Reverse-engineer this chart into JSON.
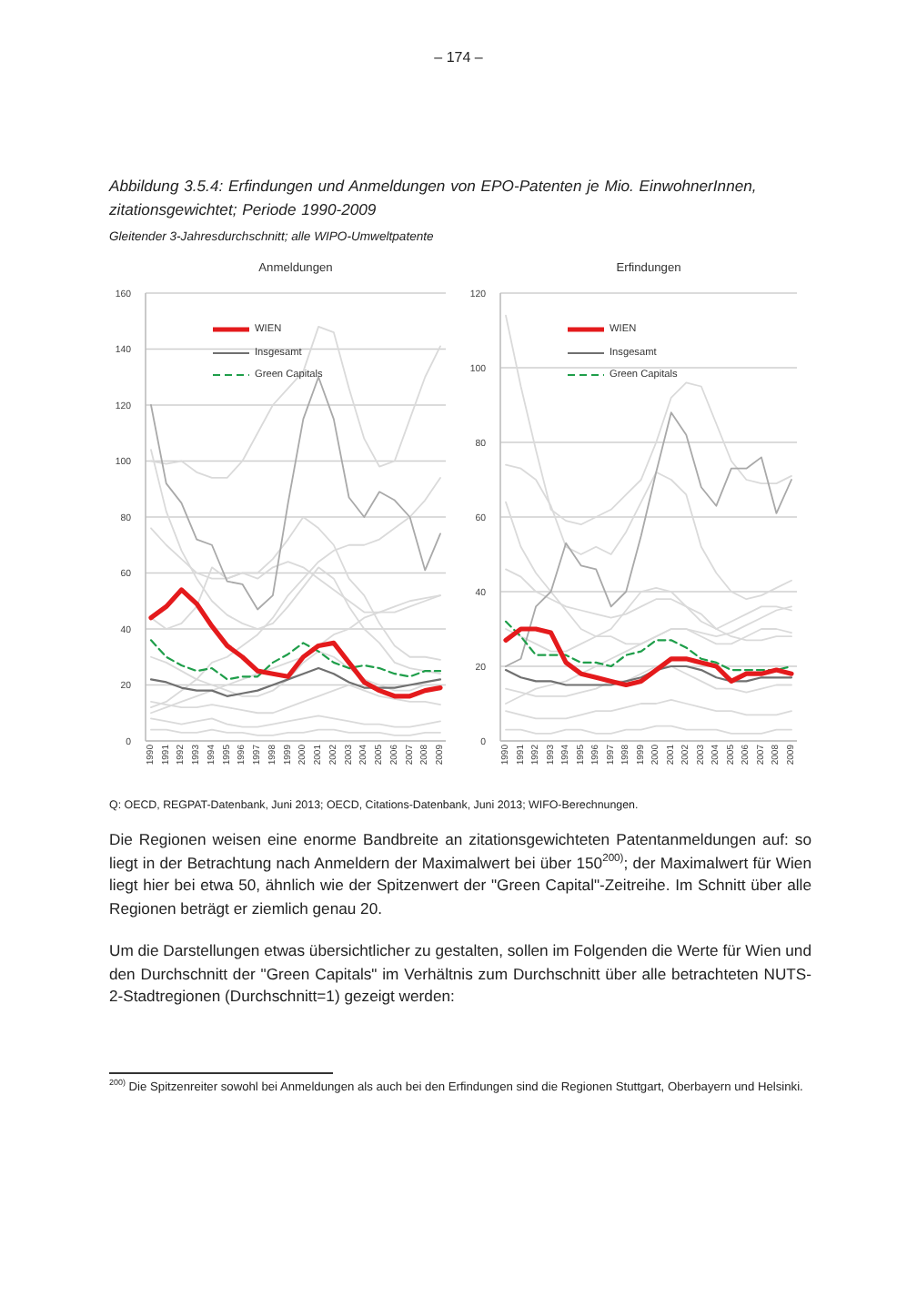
{
  "chart_data": [
    {
      "type": "other",
      "annotations": [
        "– 174 –"
      ],
      "title": "Abbildung 3.5.4: Erfindungen und Anmeldungen von EPO-Patenten je Mio. EinwohnerInnen, zitationsgewichtet; Periode 1990-2009",
      "subtitle": "Gleitender 3-Jahresdurchschnitt; alle WIPO-Umweltpatente"
    },
    {
      "type": "line",
      "title": "Anmeldungen",
      "categories": [
        "1990",
        "1991",
        "1992",
        "1993",
        "1994",
        "1995",
        "1996",
        "1997",
        "1998",
        "1999",
        "2000",
        "2001",
        "2002",
        "2003",
        "2004",
        "2005",
        "2006",
        "2007",
        "2008",
        "2009"
      ],
      "ylim": [
        0,
        160
      ],
      "yticks": [
        0,
        20,
        40,
        60,
        80,
        100,
        120,
        140,
        160
      ],
      "grid": "y",
      "legend": "top left",
      "series": [
        {
          "color": "#dadada",
          "values": [
            100,
            99,
            100,
            96,
            94,
            94,
            100,
            110,
            120,
            126,
            132,
            148,
            146,
            126,
            108,
            98,
            100,
            115,
            130,
            141
          ]
        },
        {
          "color": "#dadada",
          "values": [
            44,
            40,
            42,
            48,
            62,
            58,
            60,
            58,
            62,
            64,
            62,
            58,
            54,
            50,
            46,
            46,
            46,
            48,
            50,
            52
          ]
        },
        {
          "color": "#dadada",
          "values": [
            76,
            70,
            65,
            60,
            58,
            58,
            60,
            60,
            65,
            72,
            80,
            76,
            70,
            58,
            52,
            42,
            34,
            30,
            30,
            29
          ]
        },
        {
          "color": "#dadada",
          "values": [
            104,
            82,
            68,
            58,
            50,
            45,
            42,
            40,
            42,
            48,
            55,
            62,
            58,
            48,
            40,
            35,
            28,
            26,
            25,
            24
          ]
        },
        {
          "color": "#dadada",
          "values": [
            12,
            14,
            18,
            22,
            28,
            30,
            34,
            38,
            44,
            52,
            58,
            64,
            68,
            70,
            70,
            72,
            76,
            80,
            86,
            94
          ]
        },
        {
          "color": "#dadada",
          "values": [
            10,
            12,
            14,
            16,
            18,
            20,
            22,
            24,
            26,
            28,
            30,
            34,
            38,
            40,
            44,
            46,
            48,
            50,
            51,
            52
          ]
        },
        {
          "color": "#dadada",
          "values": [
            30,
            28,
            25,
            22,
            20,
            18,
            16,
            16,
            18,
            22,
            28,
            32,
            30,
            26,
            22,
            20,
            18,
            18,
            20,
            20
          ]
        },
        {
          "color": "#dadada",
          "values": [
            14,
            13,
            12,
            12,
            13,
            12,
            11,
            10,
            10,
            12,
            14,
            16,
            18,
            20,
            18,
            16,
            15,
            14,
            14,
            13
          ]
        },
        {
          "color": "#dadada",
          "values": [
            8,
            7,
            6,
            7,
            8,
            6,
            5,
            5,
            6,
            7,
            8,
            9,
            8,
            7,
            6,
            6,
            5,
            5,
            6,
            7
          ]
        },
        {
          "color": "#dadada",
          "values": [
            4,
            4,
            3,
            3,
            4,
            3,
            3,
            2,
            2,
            3,
            3,
            4,
            4,
            3,
            3,
            3,
            2,
            2,
            3,
            3
          ]
        },
        {
          "color": "#a9a9a9",
          "values": [
            120,
            92,
            85,
            72,
            70,
            57,
            56,
            47,
            52,
            85,
            115,
            130,
            115,
            87,
            80,
            89,
            86,
            80,
            61,
            74
          ]
        },
        {
          "name": "WIEN",
          "color": "#e41a1c",
          "values": [
            44,
            48,
            54,
            49,
            41,
            34,
            30,
            25,
            24,
            23,
            30,
            34,
            35,
            28,
            21,
            18,
            16,
            16,
            18,
            19
          ]
        },
        {
          "name": "Insgesamt",
          "color": "#707070",
          "values": [
            22,
            21,
            19,
            18,
            18,
            16,
            17,
            18,
            20,
            22,
            24,
            26,
            24,
            21,
            19,
            19,
            19,
            20,
            21,
            22
          ]
        },
        {
          "name": "Green Capitals",
          "color": "#1f9e4a",
          "line_style": "dashed",
          "values": [
            36,
            30,
            27,
            25,
            26,
            22,
            23,
            23,
            28,
            31,
            35,
            32,
            28,
            26,
            27,
            26,
            24,
            23,
            25,
            25
          ]
        }
      ]
    },
    {
      "type": "line",
      "title": "Erfindungen",
      "categories": [
        "1990",
        "1991",
        "1992",
        "1993",
        "1994",
        "1995",
        "1996",
        "1997",
        "1998",
        "1999",
        "2000",
        "2001",
        "2002",
        "2003",
        "2004",
        "2005",
        "2006",
        "2007",
        "2008",
        "2009"
      ],
      "ylim": [
        0,
        120
      ],
      "yticks": [
        0,
        20,
        40,
        60,
        80,
        100,
        120
      ],
      "grid": "y",
      "legend": "top left",
      "series": [
        {
          "color": "#dadada",
          "values": [
            114,
            95,
            78,
            62,
            59,
            58,
            60,
            62,
            66,
            70,
            80,
            92,
            96,
            95,
            85,
            75,
            70,
            69,
            69,
            71
          ]
        },
        {
          "color": "#dadada",
          "values": [
            74,
            73,
            70,
            63,
            52,
            50,
            52,
            50,
            56,
            64,
            72,
            70,
            66,
            52,
            45,
            40,
            38,
            39,
            41,
            43
          ]
        },
        {
          "color": "#dadada",
          "values": [
            64,
            52,
            45,
            40,
            35,
            30,
            28,
            30,
            35,
            40,
            41,
            40,
            36,
            32,
            30,
            28,
            27,
            27,
            28,
            28
          ]
        },
        {
          "color": "#dadada",
          "values": [
            46,
            44,
            40,
            38,
            36,
            35,
            34,
            33,
            34,
            36,
            38,
            38,
            36,
            34,
            30,
            32,
            34,
            36,
            36,
            35
          ]
        },
        {
          "color": "#dadada",
          "values": [
            10,
            12,
            14,
            15,
            16,
            18,
            20,
            22,
            24,
            26,
            28,
            30,
            30,
            29,
            28,
            29,
            31,
            33,
            35,
            36
          ]
        },
        {
          "color": "#dadada",
          "values": [
            30,
            28,
            26,
            24,
            24,
            26,
            28,
            28,
            26,
            26,
            28,
            30,
            30,
            28,
            26,
            26,
            28,
            30,
            30,
            29
          ]
        },
        {
          "color": "#dadada",
          "values": [
            14,
            13,
            12,
            12,
            12,
            13,
            14,
            16,
            16,
            18,
            20,
            20,
            18,
            16,
            14,
            14,
            13,
            14,
            15,
            15
          ]
        },
        {
          "color": "#dadada",
          "values": [
            8,
            7,
            6,
            6,
            6,
            7,
            8,
            8,
            9,
            10,
            10,
            11,
            10,
            9,
            8,
            8,
            7,
            7,
            7,
            8
          ]
        },
        {
          "color": "#dadada",
          "values": [
            3,
            3,
            2,
            2,
            3,
            3,
            2,
            2,
            3,
            3,
            4,
            4,
            3,
            3,
            3,
            2,
            2,
            2,
            3,
            3
          ]
        },
        {
          "color": "#a9a9a9",
          "values": [
            20,
            22,
            36,
            40,
            53,
            47,
            46,
            36,
            40,
            55,
            72,
            88,
            82,
            68,
            63,
            73,
            73,
            76,
            61,
            70
          ]
        },
        {
          "name": "WIEN",
          "color": "#e41a1c",
          "values": [
            27,
            30,
            30,
            29,
            21,
            18,
            17,
            16,
            15,
            16,
            19,
            22,
            22,
            21,
            20,
            16,
            18,
            18,
            19,
            18
          ]
        },
        {
          "name": "Insgesamt",
          "color": "#707070",
          "values": [
            19,
            17,
            16,
            16,
            15,
            15,
            15,
            15,
            16,
            17,
            19,
            20,
            20,
            19,
            17,
            16,
            16,
            17,
            17,
            17
          ]
        },
        {
          "name": "Green Capitals",
          "color": "#1f9e4a",
          "line_style": "dashed",
          "values": [
            32,
            28,
            23,
            23,
            23,
            21,
            21,
            20,
            23,
            24,
            27,
            27,
            25,
            22,
            21,
            19,
            19,
            19,
            19,
            20
          ]
        }
      ]
    },
    {
      "type": "other",
      "annotations": [
        "Q: OECD, REGPAT-Datenbank, Juni 2013; OECD, Citations-Datenbank, Juni 2013; WIFO-Berechnungen.",
        "Die Regionen weisen eine enorme Bandbreite an zitationsgewichteten Patentanmeldungen auf: so liegt in der Betrachtung nach Anmeldern der Maximalwert bei über 150$^{200)}$; der Maximalwert für Wien liegt hier bei etwa 50, ähnlich wie der Spitzenwert der \"Green Capital\"-Zeitreihe. Im Schnitt über alle Regionen beträgt er ziemlich genau 20.",
        "Um die Darstellungen etwas übersichtlicher zu gestalten, sollen im Folgenden die Werte für Wien und den Durchschnitt der \"Green Capitals\" im Verhältnis zum Durchschnitt über alle betrachteten NUTS-2-Stadtregionen (Durchschnitt=1) gezeigt werden:",
        "$^{200)}$ Die Spitzenreiter sowohl bei Anmeldungen als auch bei den Erfindungen sind die Regionen Stuttgart, Oberbayern und Helsinki."
      ]
    }
  ]
}
